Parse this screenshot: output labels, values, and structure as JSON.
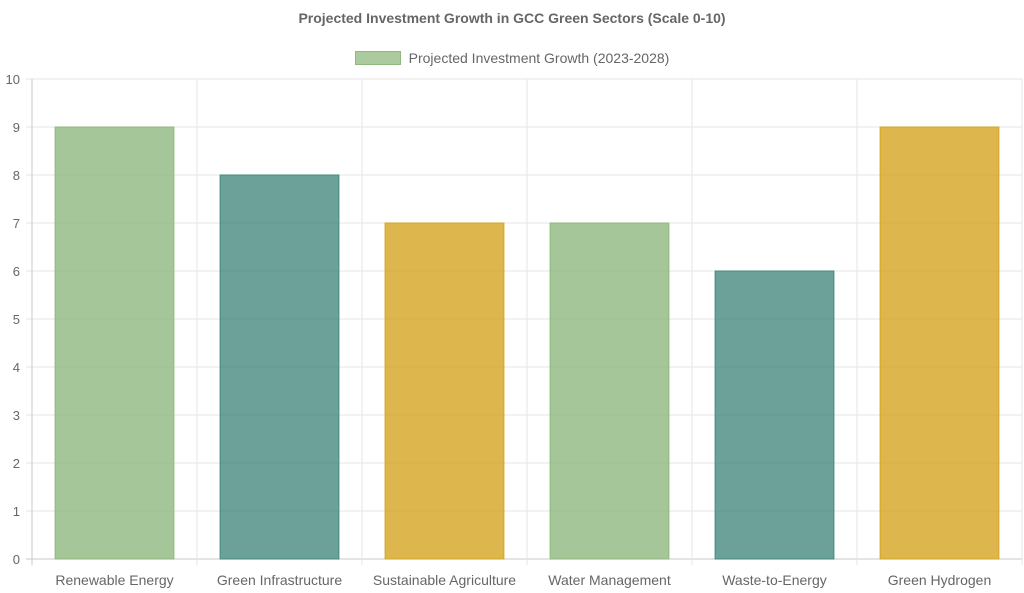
{
  "chart_data": {
    "type": "bar",
    "title": "Projected Investment Growth in GCC Green Sectors (Scale 0-10)",
    "legend": {
      "position": "top",
      "label": "Projected Investment Growth (2023-2028)"
    },
    "categories": [
      "Renewable Energy",
      "Green Infrastructure",
      "Sustainable Agriculture",
      "Water Management",
      "Waste-to-Energy",
      "Green Hydrogen"
    ],
    "series": [
      {
        "name": "Projected Investment Growth (2023-2028)",
        "values": [
          9,
          8,
          7,
          7,
          6,
          9
        ]
      }
    ],
    "bar_colors": [
      "#8fb87e",
      "#46897e",
      "#d4a520",
      "#8fb87e",
      "#46897e",
      "#d4a520"
    ],
    "ylim": [
      0,
      10
    ],
    "yticks": [
      "0",
      "1",
      "2",
      "3",
      "4",
      "5",
      "6",
      "7",
      "8",
      "9",
      "10"
    ],
    "grid": true
  }
}
